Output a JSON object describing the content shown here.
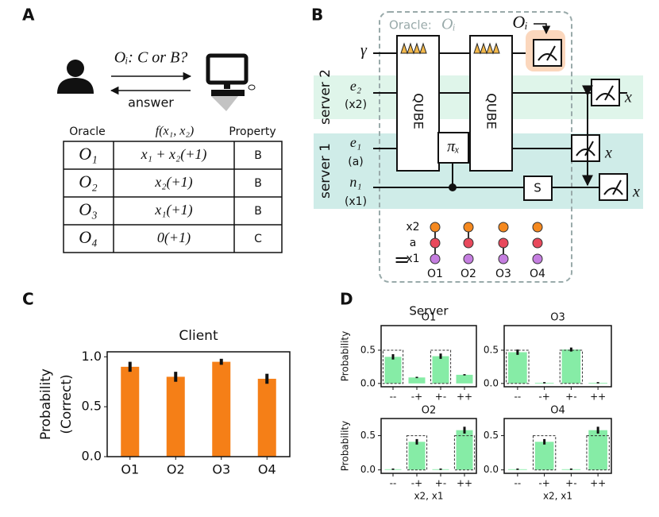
{
  "panel_labels": [
    "A",
    "B",
    "C",
    "D"
  ],
  "panel_a": {
    "query": "Oᵢ: C or B?",
    "reply": "answer",
    "table": {
      "header": [
        "Oracle",
        "f(x₁, x₂)",
        "Property"
      ],
      "rows": [
        [
          "O₁",
          "x₁ + x₂(+1)",
          "B"
        ],
        [
          "O₂",
          "x₂(+1)",
          "B"
        ],
        [
          "O₃",
          "x₁(+1)",
          "B"
        ],
        [
          "O₄",
          "0(+1)",
          "C"
        ]
      ]
    }
  },
  "panel_b": {
    "oracle_label": "Oracle:",
    "oracle_symbol": "Oᵢ",
    "measure_label": "Oᵢ",
    "gamma": "γ",
    "servers": [
      "server 2",
      "server 1"
    ],
    "qubits": [
      {
        "name": "e₂",
        "note": "(x2)"
      },
      {
        "name": "e₁",
        "note": "(a)"
      },
      {
        "name": "n₁",
        "note": "(x1)"
      }
    ],
    "gates": {
      "qube": "QUBE",
      "pi": "πₓ",
      "s": "S"
    },
    "basis": "x",
    "legend": {
      "equals": "=",
      "rows": [
        "x2",
        "a",
        "x1"
      ],
      "oracles": [
        "O1",
        "O2",
        "O3",
        "O4"
      ]
    }
  },
  "panel_d_title": "Server",
  "chart_data": [
    {
      "type": "bar",
      "title": "Client",
      "categories": [
        "O1",
        "O2",
        "O3",
        "O4"
      ],
      "values": [
        0.9,
        0.8,
        0.95,
        0.78
      ],
      "errors": [
        0.05,
        0.05,
        0.03,
        0.05
      ],
      "color": "#f57f17",
      "ylabel": [
        "Probability",
        "(Correct)"
      ],
      "ylim": [
        0,
        1.05
      ],
      "yticks": [
        {
          "value": 0,
          "label": "0.0"
        },
        {
          "value": 0.5,
          "label": "0.5"
        },
        {
          "value": 1,
          "label": "1.0"
        }
      ]
    },
    {
      "type": "bar",
      "title": "O1",
      "categories": [
        "--",
        "-+",
        "+-",
        "++"
      ],
      "values": [
        0.4,
        0.09,
        0.41,
        0.13
      ],
      "errors": [
        0.04,
        0.01,
        0.04,
        0.01
      ],
      "ideal": [
        0.5,
        0,
        0.5,
        0
      ],
      "color": "#86eca6",
      "ylabel": "Probability",
      "ylim": [
        -0.05,
        0.87
      ],
      "yticks": [
        {
          "value": 0,
          "label": "0.0"
        },
        {
          "value": 0.5,
          "label": "0.5"
        }
      ]
    },
    {
      "type": "bar",
      "title": "O3",
      "categories": [
        "--",
        "-+",
        "+-",
        "++"
      ],
      "values": [
        0.47,
        0.01,
        0.51,
        0.01
      ],
      "errors": [
        0.04,
        0.01,
        0.03,
        0.01
      ],
      "ideal": [
        0.5,
        0,
        0.5,
        0
      ],
      "color": "#86eca6",
      "ylim": [
        -0.05,
        0.87
      ],
      "yticks": [
        {
          "value": 0,
          "label": "0.0"
        },
        {
          "value": 0.5,
          "label": "0.5"
        }
      ]
    },
    {
      "type": "bar",
      "title": "O2",
      "categories": [
        "--",
        "-+",
        "+-",
        "++"
      ],
      "values": [
        0.01,
        0.41,
        0.01,
        0.58
      ],
      "errors": [
        0.01,
        0.04,
        0.01,
        0.05
      ],
      "ideal": [
        0,
        0.5,
        0,
        0.5
      ],
      "color": "#86eca6",
      "ylabel": "Probability",
      "xlabel": "x2, x1",
      "ylim": [
        -0.05,
        0.75
      ],
      "yticks": [
        {
          "value": 0,
          "label": "0.0"
        },
        {
          "value": 0.5,
          "label": "0.5"
        }
      ]
    },
    {
      "type": "bar",
      "title": "O4",
      "categories": [
        "--",
        "-+",
        "+-",
        "++"
      ],
      "values": [
        0.01,
        0.41,
        0.01,
        0.58
      ],
      "errors": [
        0.01,
        0.04,
        0.01,
        0.05
      ],
      "ideal": [
        0,
        0.5,
        0,
        0.5
      ],
      "color": "#86eca6",
      "xlabel": "x2, x1",
      "ylim": [
        -0.05,
        0.75
      ],
      "yticks": [
        {
          "value": 0,
          "label": "0.0"
        },
        {
          "value": 0.5,
          "label": "0.5"
        }
      ]
    }
  ]
}
